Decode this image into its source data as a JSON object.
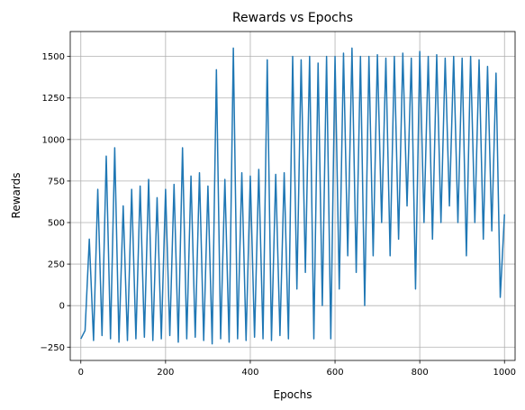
{
  "chart_data": {
    "type": "line",
    "title": "Rewards vs Epochs",
    "xlabel": "Epochs",
    "ylabel": "Rewards",
    "xlim": [
      -25,
      1025
    ],
    "ylim": [
      -330,
      1650
    ],
    "xticks": [
      0,
      200,
      400,
      600,
      800,
      1000
    ],
    "yticks": [
      -250,
      0,
      250,
      500,
      750,
      1000,
      1250,
      1500
    ],
    "grid": true,
    "line_color": "#1f77b4",
    "series": [
      {
        "x": [
          0,
          10,
          20,
          30,
          40,
          50,
          60,
          70,
          80,
          90,
          100,
          110,
          120,
          130,
          140,
          150,
          160,
          170,
          180,
          190,
          200,
          210,
          220,
          230,
          240,
          250,
          260,
          270,
          280,
          290,
          300,
          310,
          320,
          330,
          340,
          350,
          360,
          370,
          380,
          390,
          400,
          410,
          420,
          430,
          440,
          450,
          460,
          470,
          480,
          490,
          500,
          510,
          520,
          530,
          540,
          550,
          560,
          570,
          580,
          590,
          600,
          610,
          620,
          630,
          640,
          650,
          660,
          670,
          680,
          690,
          700,
          710,
          720,
          730,
          740,
          750,
          760,
          770,
          780,
          790,
          800,
          810,
          820,
          830,
          840,
          850,
          860,
          870,
          880,
          890,
          900,
          910,
          920,
          930,
          940,
          950,
          960,
          970,
          980,
          990,
          1000
        ],
        "y": [
          -200,
          -150,
          400,
          -210,
          700,
          -180,
          900,
          -200,
          950,
          -220,
          600,
          -210,
          700,
          -200,
          720,
          -190,
          760,
          -210,
          650,
          -200,
          700,
          -180,
          730,
          -220,
          950,
          -200,
          780,
          -190,
          800,
          -210,
          720,
          -230,
          1420,
          -200,
          760,
          -220,
          1550,
          -200,
          800,
          -210,
          780,
          -190,
          820,
          -200,
          1480,
          -210,
          790,
          -180,
          800,
          -200,
          1500,
          100,
          1480,
          200,
          1500,
          -200,
          1460,
          0,
          1500,
          -200,
          1500,
          100,
          1520,
          300,
          1550,
          200,
          1500,
          0,
          1500,
          300,
          1510,
          500,
          1490,
          300,
          1500,
          400,
          1520,
          600,
          1490,
          100,
          1530,
          500,
          1500,
          400,
          1510,
          500,
          1490,
          600,
          1500,
          500,
          1490,
          300,
          1500,
          500,
          1480,
          400,
          1440,
          450,
          1400,
          50,
          550
        ]
      }
    ]
  }
}
